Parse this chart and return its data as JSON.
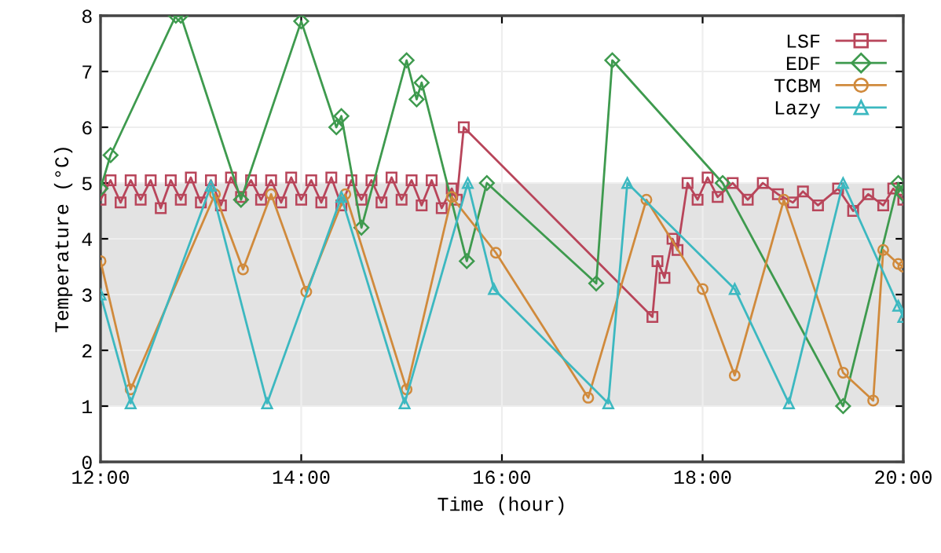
{
  "chart_data": {
    "type": "line",
    "xlabel": "Time (hour)",
    "ylabel": "Temperature (°C)",
    "xlim": [
      12,
      20
    ],
    "ylim": [
      0,
      8
    ],
    "xticks": [
      {
        "value": 12,
        "label": "12:00"
      },
      {
        "value": 14,
        "label": "14:00"
      },
      {
        "value": 16,
        "label": "16:00"
      },
      {
        "value": 18,
        "label": "18:00"
      },
      {
        "value": 20,
        "label": "20:00"
      }
    ],
    "yticks": [
      0,
      1,
      2,
      3,
      4,
      5,
      6,
      7,
      8
    ],
    "grid": true,
    "legend": "top right",
    "line_style": "solid",
    "bands": [
      {
        "axis": "y",
        "from": 1,
        "to": 5,
        "color": "#e3e3e3"
      }
    ],
    "series": [
      {
        "name": "LSF",
        "color": "#b8455a",
        "marker": "square",
        "x": [
          12.0,
          12.1,
          12.2,
          12.3,
          12.4,
          12.5,
          12.6,
          12.7,
          12.8,
          12.9,
          13.0,
          13.1,
          13.2,
          13.3,
          13.4,
          13.5,
          13.6,
          13.7,
          13.8,
          13.9,
          14.0,
          14.1,
          14.2,
          14.3,
          14.4,
          14.5,
          14.6,
          14.7,
          14.8,
          14.9,
          15.0,
          15.1,
          15.2,
          15.3,
          15.4,
          15.5,
          15.55,
          15.62,
          17.5,
          17.55,
          17.62,
          17.7,
          17.75,
          17.85,
          17.95,
          18.05,
          18.15,
          18.3,
          18.45,
          18.6,
          18.75,
          18.9,
          19.0,
          19.15,
          19.35,
          19.5,
          19.65,
          19.8,
          19.9,
          20.0
        ],
        "values": [
          4.7,
          5.05,
          4.65,
          5.05,
          4.7,
          5.05,
          4.55,
          5.05,
          4.7,
          5.1,
          4.65,
          5.05,
          4.6,
          5.1,
          4.75,
          5.05,
          4.7,
          5.05,
          4.65,
          5.1,
          4.7,
          5.05,
          4.65,
          5.1,
          4.6,
          5.05,
          4.7,
          5.05,
          4.65,
          5.1,
          4.7,
          5.05,
          4.6,
          5.05,
          4.55,
          4.9,
          4.7,
          6.0,
          2.6,
          3.6,
          3.3,
          4.0,
          3.8,
          5.0,
          4.7,
          5.1,
          4.75,
          5.0,
          4.7,
          5.0,
          4.8,
          4.65,
          4.85,
          4.6,
          4.9,
          4.5,
          4.8,
          4.6,
          4.9,
          4.7
        ]
      },
      {
        "name": "EDF",
        "color": "#3e9a4e",
        "marker": "diamond",
        "x": [
          12.0,
          12.1,
          12.75,
          12.8,
          13.4,
          14.0,
          14.35,
          14.4,
          14.6,
          15.05,
          15.15,
          15.2,
          15.65,
          15.85,
          16.94,
          17.1,
          18.2,
          19.4,
          19.95,
          20.0
        ],
        "values": [
          4.9,
          5.5,
          8.0,
          8.0,
          4.7,
          7.9,
          6.0,
          6.2,
          4.2,
          7.2,
          6.5,
          6.8,
          3.6,
          5.0,
          3.2,
          7.2,
          5.0,
          1.0,
          5.0,
          4.8
        ]
      },
      {
        "name": "TCBM",
        "color": "#d08a3c",
        "marker": "circle",
        "x": [
          12.0,
          12.3,
          13.14,
          13.42,
          13.7,
          14.05,
          14.44,
          15.05,
          15.5,
          15.94,
          16.86,
          17.44,
          18.0,
          18.32,
          18.81,
          19.4,
          19.7,
          19.8,
          19.95,
          20.0
        ],
        "values": [
          3.6,
          1.3,
          4.8,
          3.45,
          4.8,
          3.05,
          4.8,
          1.3,
          4.75,
          3.75,
          1.15,
          4.7,
          3.1,
          1.55,
          4.7,
          1.6,
          1.1,
          3.8,
          3.55,
          3.5
        ]
      },
      {
        "name": "Lazy",
        "color": "#3cb8c0",
        "marker": "triangle",
        "x": [
          12.0,
          12.3,
          13.1,
          13.66,
          14.4,
          15.03,
          15.66,
          15.92,
          17.06,
          17.25,
          18.32,
          18.86,
          19.4,
          19.95,
          20.0
        ],
        "values": [
          3.0,
          1.05,
          4.95,
          1.05,
          4.75,
          1.05,
          5.0,
          3.1,
          1.05,
          5.0,
          3.1,
          1.05,
          5.0,
          2.8,
          2.6
        ]
      }
    ]
  }
}
